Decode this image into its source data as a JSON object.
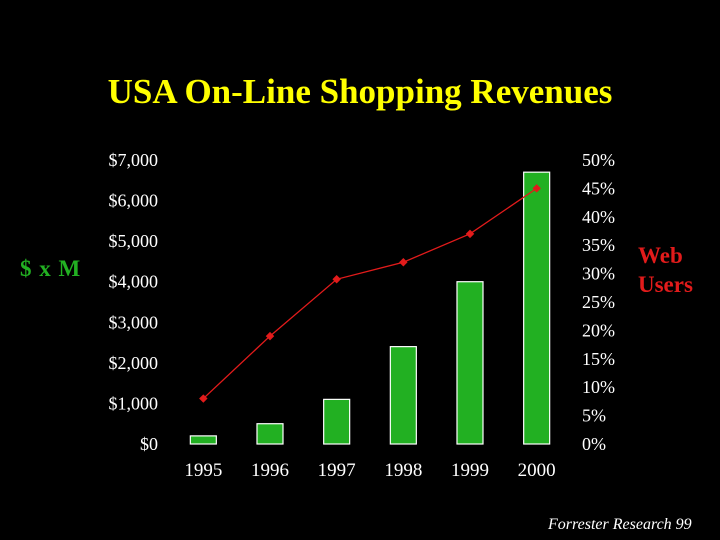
{
  "slide": {
    "title": "USA On-Line Shopping Revenues",
    "source": "Forrester Research 99"
  },
  "chart_data": {
    "type": "bar",
    "title": "USA On-Line Shopping Revenues",
    "categories": [
      "1995",
      "1996",
      "1997",
      "1998",
      "1999",
      "2000"
    ],
    "series": [
      {
        "values": [
          200,
          500,
          1100,
          2400,
          4000,
          6700
        ],
        "type": "bar",
        "axis": "left",
        "color": "#22b022"
      },
      {
        "values": [
          8,
          19,
          29,
          32,
          37,
          45
        ],
        "type": "line",
        "axis": "right",
        "color": "#e21b1b"
      }
    ],
    "ylabel": "$ x M",
    "ylabel2": "Web Users",
    "ylim": [
      0,
      7000
    ],
    "ylim2": [
      0,
      50
    ],
    "yticks": [
      "$0",
      "$1,000",
      "$2,000",
      "$3,000",
      "$4,000",
      "$5,000",
      "$6,000",
      "$7,000"
    ],
    "yticks2": [
      "0%",
      "5%",
      "10%",
      "15%",
      "20%",
      "25%",
      "30%",
      "35%",
      "40%",
      "45%",
      "50%"
    ],
    "grid": false,
    "legend": "none"
  },
  "colors": {
    "background": "#000000",
    "title": "#ffff00",
    "bars": "#22b022",
    "line": "#e21b1b",
    "text": "#ffffff"
  }
}
